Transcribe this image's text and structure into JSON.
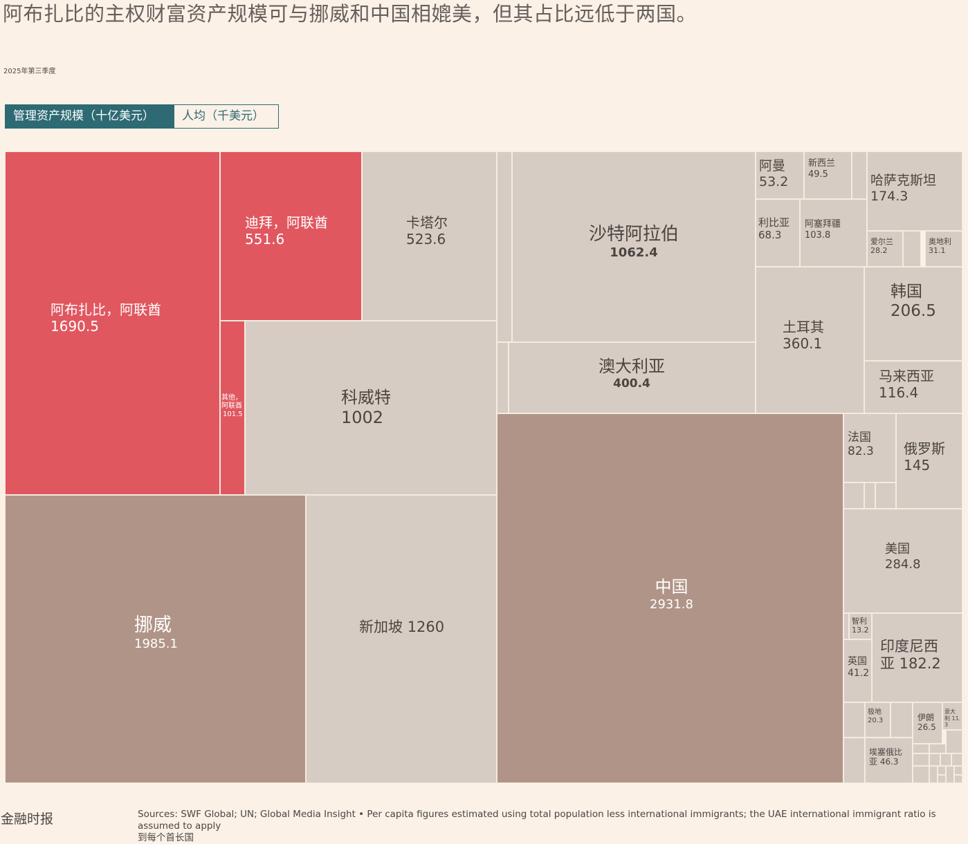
{
  "title": "阿布扎比的主权财富资产规模可与挪威和中国相媲美，但其占比远低于两国。",
  "subtitle": "2025年第三季度",
  "toggle": {
    "aum_label": "管理资产规模（十亿美元）",
    "per_capita_label": "人均（千美元）",
    "selected": "aum"
  },
  "colors": {
    "uae": "#e05760",
    "gulf": "#d7ccc3",
    "other": "#d7ccc3",
    "largest": "#b09487",
    "toggle_active": "#2d6a73",
    "background": "#fbf1e7"
  },
  "treemap": {
    "abu_dhabi": {
      "name": "阿布扎比，阿联酋",
      "value": "1690.5"
    },
    "dubai": {
      "name": "迪拜，阿联酋",
      "value": "551.6"
    },
    "qatar": {
      "name": "卡塔尔",
      "value": "523.6"
    },
    "other_uae": {
      "name_line1": "其他，",
      "name_line2": "阿联酋",
      "value": "101.5"
    },
    "kuwait": {
      "name": "科威特",
      "value": "1002"
    },
    "saudi": {
      "name": "沙特阿拉伯",
      "value": "1062.4"
    },
    "australia": {
      "name": "澳大利亚",
      "value": "400.4"
    },
    "oman": {
      "name": "阿曼",
      "value": "53.2"
    },
    "new_zealand": {
      "name": "新西兰",
      "value": "49.5"
    },
    "kazakhstan": {
      "name": "哈萨克斯坦",
      "value": "174.3"
    },
    "libya": {
      "name": "利比亚",
      "value": "68.3"
    },
    "azerbaijan": {
      "name": "阿塞拜疆",
      "value": "103.8"
    },
    "ireland": {
      "name": "爱尔兰",
      "value": "28.2"
    },
    "austria": {
      "name": "奥地利",
      "value": "31.1"
    },
    "turkey": {
      "name": "土耳其",
      "value": "360.1"
    },
    "korea": {
      "name": "韩国",
      "value": "206.5"
    },
    "malaysia": {
      "name": "马来西亚",
      "value": "116.4"
    },
    "norway": {
      "name": "挪威",
      "value": "1985.1"
    },
    "singapore": {
      "name": "新加坡",
      "value": "1260"
    },
    "china": {
      "name": "中国",
      "value": "2931.8"
    },
    "france": {
      "name": "法国",
      "value": "82.3"
    },
    "russia": {
      "name": "俄罗斯",
      "value": "145"
    },
    "usa": {
      "name": "美国",
      "value": "284.8"
    },
    "chile": {
      "name": "智利",
      "value": "13.2"
    },
    "uk": {
      "name": "英国",
      "value": "41.2"
    },
    "indonesia": {
      "name_line1": "印度尼西",
      "name_line2": "亚 182.2"
    },
    "antarctica_like": {
      "name": "极地",
      "value": "20.3"
    },
    "iran": {
      "name": "伊朗",
      "value": "26.5"
    },
    "italy": {
      "name_line1": "意大",
      "name_line2": "利 11.",
      "name_line3": "3"
    },
    "ethiopia": {
      "name_line1": "埃塞俄比",
      "name_line2": "亚 46.3"
    }
  },
  "footer": {
    "logo": "金融时报",
    "sources_line1": "Sources: SWF Global; UN; Global Media Insight • Per capita figures estimated using total population less international immigrants; the UAE international immigrant ratio is assumed to apply",
    "sources_line2": "到每个首长国"
  }
}
